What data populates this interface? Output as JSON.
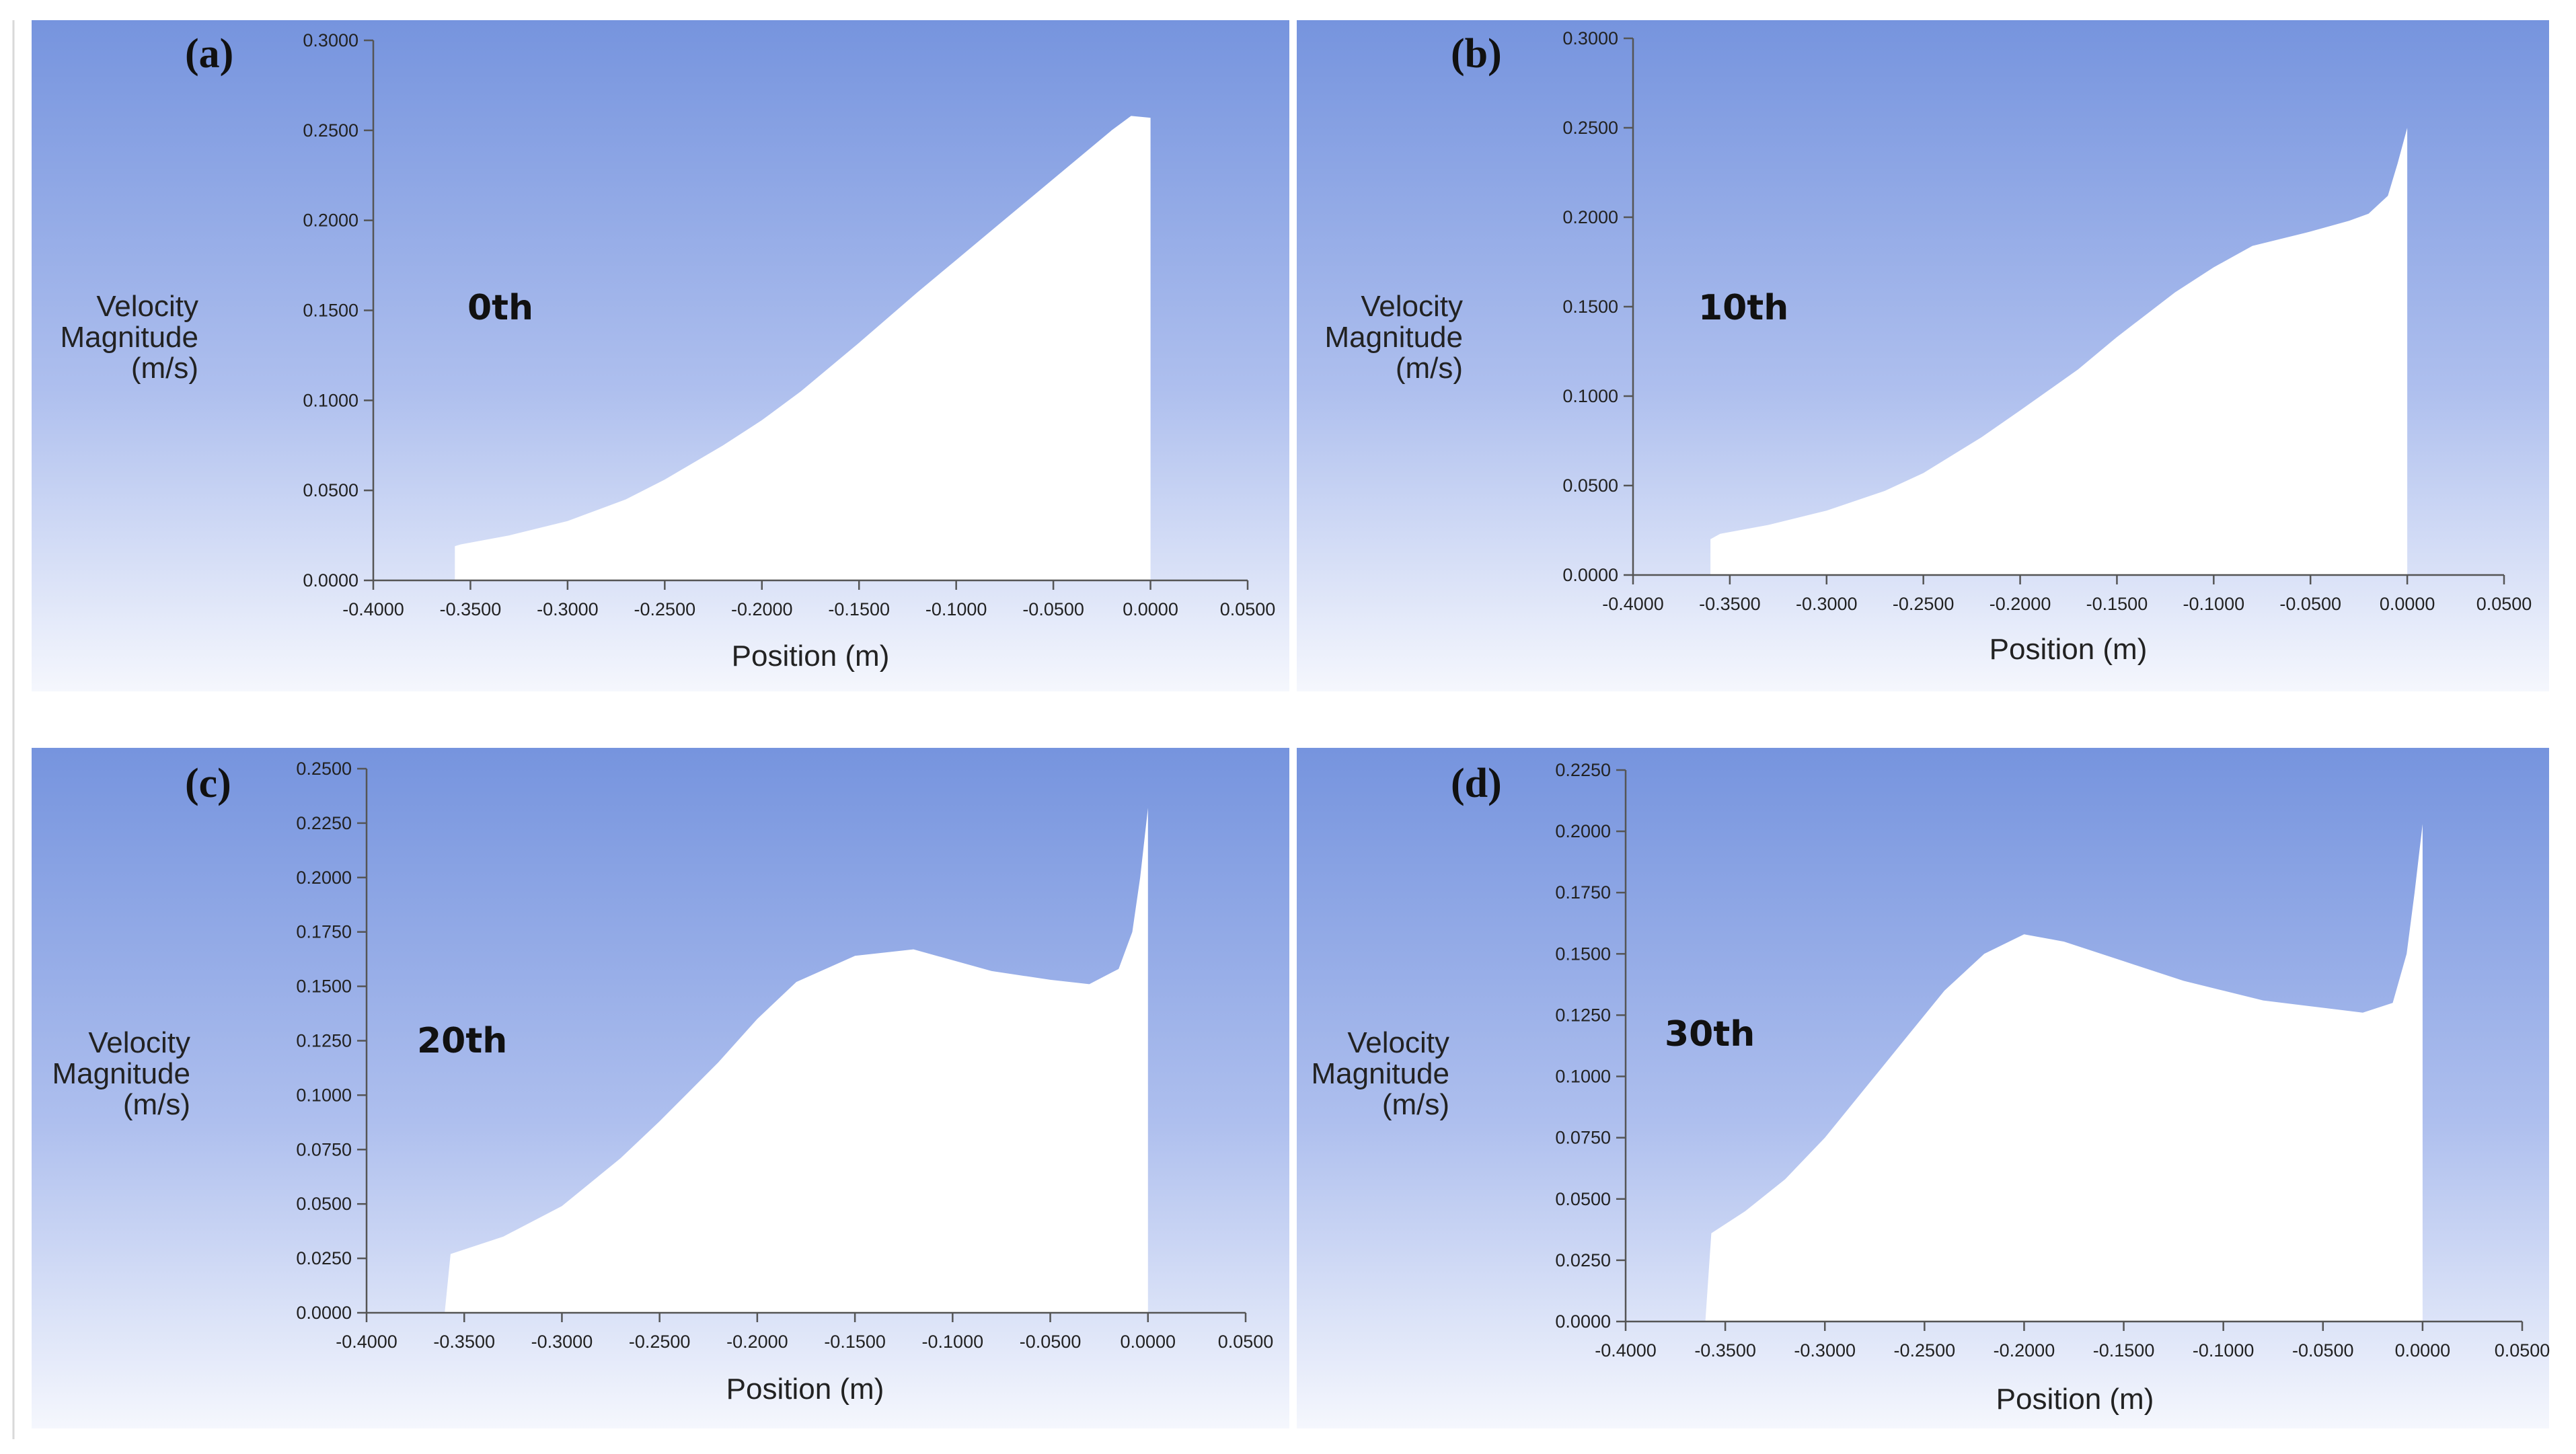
{
  "chart_data": [
    {
      "type": "area",
      "panel_label": "(a)",
      "annotation": "0th",
      "xlabel": "Position (m)",
      "ylabel": [
        "Velocity",
        "Magnitude",
        "(m/s)"
      ],
      "xlim": [
        -0.4,
        0.05
      ],
      "ylim": [
        0,
        0.3
      ],
      "xticks": [
        "-0.4000",
        "-0.3500",
        "-0.3000",
        "-0.2500",
        "-0.2000",
        "-0.1500",
        "-0.1000",
        "-0.0500",
        "0.0000",
        "0.0500"
      ],
      "yticks": [
        "0.0000",
        "0.0500",
        "0.1000",
        "0.1500",
        "0.2000",
        "0.2500",
        "0.3000"
      ],
      "series": [
        {
          "x": [
            -0.358,
            -0.355,
            -0.33,
            -0.3,
            -0.27,
            -0.25,
            -0.22,
            -0.2,
            -0.18,
            -0.15,
            -0.12,
            -0.1,
            -0.08,
            -0.06,
            -0.04,
            -0.02,
            -0.01,
            0.0
          ],
          "y": [
            0.019,
            0.02,
            0.025,
            0.033,
            0.045,
            0.056,
            0.075,
            0.089,
            0.105,
            0.132,
            0.16,
            0.178,
            0.196,
            0.214,
            0.232,
            0.25,
            0.258,
            0.257
          ]
        }
      ]
    },
    {
      "type": "area",
      "panel_label": "(b)",
      "annotation": "10th",
      "xlabel": "Position (m)",
      "ylabel": [
        "Velocity",
        "Magnitude",
        "(m/s)"
      ],
      "xlim": [
        -0.4,
        0.05
      ],
      "ylim": [
        0,
        0.3
      ],
      "xticks": [
        "-0.4000",
        "-0.3500",
        "-0.3000",
        "-0.2500",
        "-0.2000",
        "-0.1500",
        "-0.1000",
        "-0.0500",
        "0.0000",
        "0.0500"
      ],
      "yticks": [
        "0.0000",
        "0.0500",
        "0.1000",
        "0.1500",
        "0.2000",
        "0.2500",
        "0.3000"
      ],
      "series": [
        {
          "x": [
            -0.36,
            -0.355,
            -0.33,
            -0.3,
            -0.27,
            -0.25,
            -0.22,
            -0.2,
            -0.17,
            -0.15,
            -0.12,
            -0.1,
            -0.08,
            -0.05,
            -0.03,
            -0.02,
            -0.01,
            -0.005,
            0.0
          ],
          "y": [
            0.02,
            0.023,
            0.028,
            0.036,
            0.047,
            0.057,
            0.077,
            0.092,
            0.115,
            0.133,
            0.158,
            0.172,
            0.184,
            0.192,
            0.198,
            0.202,
            0.212,
            0.23,
            0.25
          ]
        }
      ]
    },
    {
      "type": "area",
      "panel_label": "(c)",
      "annotation": "20th",
      "xlabel": "Position (m)",
      "ylabel": [
        "Velocity",
        "Magnitude",
        "(m/s)"
      ],
      "xlim": [
        -0.4,
        0.05
      ],
      "ylim": [
        0,
        0.25
      ],
      "xticks": [
        "-0.4000",
        "-0.3500",
        "-0.3000",
        "-0.2500",
        "-0.2000",
        "-0.1500",
        "-0.1000",
        "-0.0500",
        "0.0000",
        "0.0500"
      ],
      "yticks": [
        "0.0000",
        "0.0250",
        "0.0500",
        "0.0750",
        "0.1000",
        "0.1250",
        "0.1500",
        "0.1750",
        "0.2000",
        "0.2250",
        "0.2500"
      ],
      "series": [
        {
          "x": [
            -0.36,
            -0.357,
            -0.33,
            -0.3,
            -0.27,
            -0.25,
            -0.22,
            -0.2,
            -0.18,
            -0.15,
            -0.12,
            -0.1,
            -0.08,
            -0.05,
            -0.03,
            -0.015,
            -0.008,
            -0.004,
            0.0
          ],
          "y": [
            0.0,
            0.027,
            0.035,
            0.049,
            0.071,
            0.088,
            0.115,
            0.135,
            0.152,
            0.164,
            0.167,
            0.162,
            0.157,
            0.153,
            0.151,
            0.158,
            0.175,
            0.2,
            0.232
          ]
        }
      ]
    },
    {
      "type": "area",
      "panel_label": "(d)",
      "annotation": "30th",
      "xlabel": "Position (m)",
      "ylabel": [
        "Velocity",
        "Magnitude",
        "(m/s)"
      ],
      "xlim": [
        -0.4,
        0.05
      ],
      "ylim": [
        0,
        0.225
      ],
      "xticks": [
        "-0.4000",
        "-0.3500",
        "-0.3000",
        "-0.2500",
        "-0.2000",
        "-0.1500",
        "-0.1000",
        "-0.0500",
        "0.0000",
        "0.0500"
      ],
      "yticks": [
        "0.0000",
        "0.0250",
        "0.0500",
        "0.0750",
        "0.1000",
        "0.1250",
        "0.1500",
        "0.1750",
        "0.2000",
        "0.2250"
      ],
      "series": [
        {
          "x": [
            -0.36,
            -0.357,
            -0.34,
            -0.32,
            -0.3,
            -0.28,
            -0.26,
            -0.24,
            -0.22,
            -0.2,
            -0.18,
            -0.15,
            -0.12,
            -0.1,
            -0.08,
            -0.05,
            -0.03,
            -0.015,
            -0.008,
            -0.004,
            0.0
          ],
          "y": [
            0.0,
            0.036,
            0.045,
            0.058,
            0.075,
            0.095,
            0.115,
            0.135,
            0.15,
            0.158,
            0.155,
            0.147,
            0.139,
            0.135,
            0.131,
            0.128,
            0.126,
            0.13,
            0.15,
            0.175,
            0.203
          ]
        }
      ]
    }
  ]
}
